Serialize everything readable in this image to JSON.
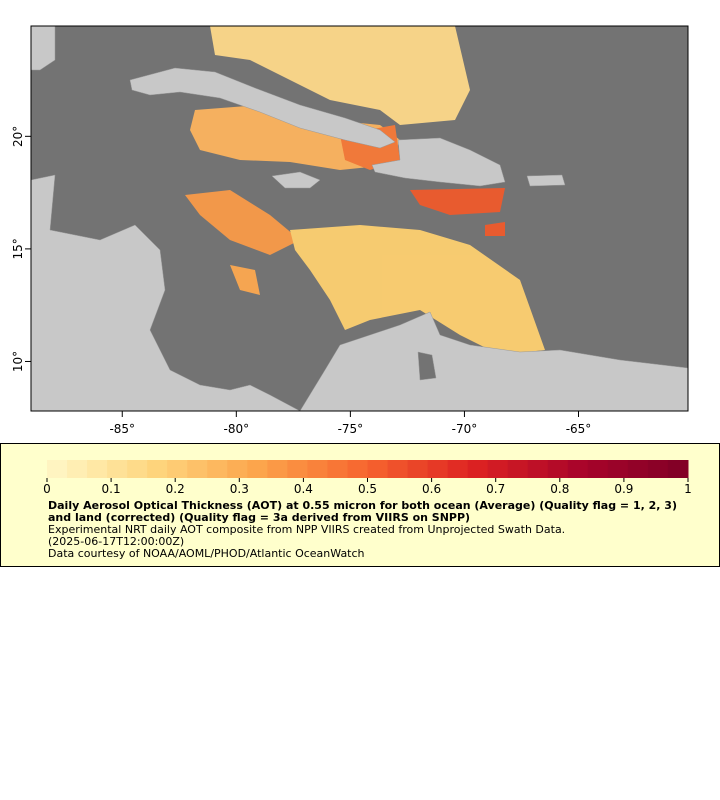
{
  "map": {
    "xlim": [
      -89,
      -60.2
    ],
    "ylim": [
      7.8,
      24.9
    ],
    "xticks": [
      {
        "value": -85,
        "label": "-85°"
      },
      {
        "value": -80,
        "label": "-80°"
      },
      {
        "value": -75,
        "label": "-75°"
      },
      {
        "value": -70,
        "label": "-70°"
      },
      {
        "value": -65,
        "label": "-65°"
      }
    ],
    "yticks": [
      {
        "value": 10,
        "label": "10°"
      },
      {
        "value": 15,
        "label": "15°"
      },
      {
        "value": 20,
        "label": "20°"
      }
    ]
  },
  "colorbar": {
    "range": [
      0,
      1
    ],
    "ticks": [
      0,
      0.1,
      0.2,
      0.3,
      0.4,
      0.5,
      0.6,
      0.7,
      0.8,
      0.9,
      1
    ],
    "colormap": [
      "#fff7c8",
      "#fed67e",
      "#fca34a",
      "#f6642e",
      "#dd2222",
      "#a8042a",
      "#7f0026"
    ]
  },
  "caption": {
    "title": "Daily Aerosol Optical Thickness (AOT) at 0.55 micron for both ocean (Average) (Quality flag = 1, 2, 3) and land (corrected) (Quality flag = 3a derived from VIIRS on SNPP)",
    "line1": "Experimental NRT daily AOT composite from NPP VIIRS created from Unprojected Swath Data.",
    "line2": "(2025-06-17T12:00:00Z)",
    "line3": "Data courtesy of NOAA/AOML/PHOD/Atlantic OceanWatch"
  }
}
